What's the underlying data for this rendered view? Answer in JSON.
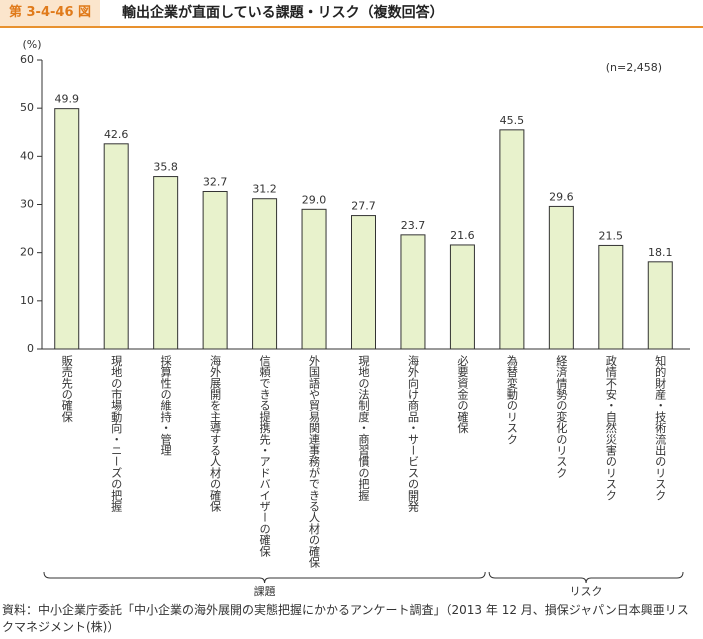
{
  "header": {
    "figure_number": "第 3-4-46 図"
  },
  "chart_data": {
    "type": "bar",
    "title": "輸出企業が直面している課題・リスク（複数回答）",
    "y_label": "(%)",
    "annotation": "(n=2,458)",
    "color": "#e8f2cc",
    "edge_color": "#333333",
    "ylim": [
      0,
      60
    ],
    "yticks": [
      0,
      10,
      20,
      30,
      40,
      50,
      60
    ],
    "grid": false,
    "groups": [
      {
        "name": "課題",
        "categories": [
          "販売先の確保",
          "現地の市場動向・ニーズの把握",
          "採算性の維持・管理",
          "海外展開を主導する人材の確保",
          "信頼できる提携先・アドバイザーの確保",
          "外国語や貿易関連事務ができる人材の確保",
          "現地の法制度・商習慣の把握",
          "海外向け商品・サービスの開発",
          "必要資金の確保"
        ],
        "values": [
          49.9,
          42.6,
          35.8,
          32.7,
          31.2,
          29.0,
          27.7,
          23.7,
          21.6
        ],
        "value_labels": [
          "49.9",
          "42.6",
          "35.8",
          "32.7",
          "31.2",
          "29.0",
          "27.7",
          "23.7",
          "21.6"
        ]
      },
      {
        "name": "リスク",
        "categories": [
          "為替変動のリスク",
          "経済情勢の変化のリスク",
          "政情不安・自然災害のリスク",
          "知的財産・技術流出のリスク"
        ],
        "values": [
          45.5,
          29.6,
          21.5,
          18.1
        ],
        "value_labels": [
          "45.5",
          "29.6",
          "21.5",
          "18.1"
        ]
      }
    ]
  },
  "source": "資料：中小企業庁委託「中小企業の海外展開の実態把握にかかるアンケート調査」（2013 年 12 月、損保ジャパン日本興亜リスクマネジメント(株)）"
}
